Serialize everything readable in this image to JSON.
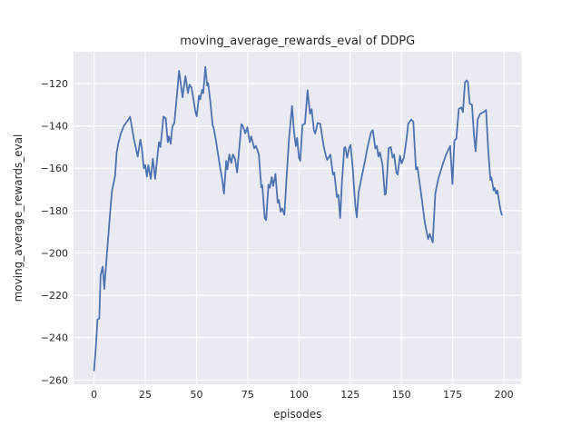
{
  "figure": {
    "title": "moving_average_rewards_eval of DDPG",
    "xlabel": "episodes",
    "ylabel": "moving_average_rewards_eval"
  },
  "chart_data": {
    "type": "line",
    "title": "moving_average_rewards_eval of DDPG",
    "xlabel": "episodes",
    "ylabel": "moving_average_rewards_eval",
    "x_ticks": [
      0,
      25,
      50,
      75,
      100,
      125,
      150,
      175,
      200
    ],
    "y_ticks": [
      -260,
      -240,
      -220,
      -200,
      -180,
      -160,
      -140,
      -120
    ],
    "xlim": [
      -10,
      208.6
    ],
    "ylim": [
      -262,
      -105
    ],
    "grid": true,
    "legend": false,
    "style": "seaborn-darkgrid",
    "line_color": "#4c72b0",
    "background_color": "#eaeaf2",
    "grid_color": "#ffffff",
    "text_color": "#262626",
    "series": [
      {
        "name": "moving_average_rewards_eval",
        "points": [
          [
            0,
            -255.5
          ],
          [
            1,
            -243
          ],
          [
            1.7,
            -231.5
          ],
          [
            2.6,
            -231
          ],
          [
            3.2,
            -210.5
          ],
          [
            4.2,
            -206.5
          ],
          [
            5,
            -217
          ],
          [
            6.5,
            -198
          ],
          [
            8,
            -179.5
          ],
          [
            8.8,
            -170.5
          ],
          [
            9.8,
            -166
          ],
          [
            10.3,
            -163.5
          ],
          [
            11,
            -153
          ],
          [
            11.8,
            -148.5
          ],
          [
            13.1,
            -143.5
          ],
          [
            14.6,
            -140
          ],
          [
            16.1,
            -138
          ],
          [
            17.6,
            -135.7
          ],
          [
            19.5,
            -146.5
          ],
          [
            20.5,
            -151
          ],
          [
            21.3,
            -154.5
          ],
          [
            22.6,
            -146.5
          ],
          [
            23.4,
            -151
          ],
          [
            24.3,
            -160
          ],
          [
            25,
            -158.5
          ],
          [
            25.8,
            -164
          ],
          [
            26.5,
            -158.5
          ],
          [
            27.7,
            -165
          ],
          [
            28.7,
            -155.5
          ],
          [
            29.8,
            -165
          ],
          [
            31,
            -153.5
          ],
          [
            31.7,
            -147.7
          ],
          [
            32.4,
            -150
          ],
          [
            33.9,
            -135.6
          ],
          [
            35,
            -136.5
          ],
          [
            36,
            -147.7
          ],
          [
            36.6,
            -145
          ],
          [
            37.4,
            -148.5
          ],
          [
            38.2,
            -140.5
          ],
          [
            39.2,
            -138.5
          ],
          [
            41.5,
            -114
          ],
          [
            43.2,
            -126.5
          ],
          [
            44.6,
            -116.5
          ],
          [
            45.8,
            -124.5
          ],
          [
            46.6,
            -120.5
          ],
          [
            47.6,
            -122
          ],
          [
            48.6,
            -128
          ],
          [
            49.5,
            -133.5
          ],
          [
            50.1,
            -135.5
          ],
          [
            51.2,
            -125.7
          ],
          [
            51.8,
            -127.5
          ],
          [
            52.7,
            -123
          ],
          [
            53.3,
            -124.5
          ],
          [
            54.3,
            -112.2
          ],
          [
            55.2,
            -121
          ],
          [
            55.7,
            -119.8
          ],
          [
            56.8,
            -129
          ],
          [
            57.9,
            -140
          ],
          [
            58.3,
            -140.5
          ],
          [
            59.5,
            -147
          ],
          [
            60.2,
            -151.5
          ],
          [
            61.6,
            -160
          ],
          [
            62.5,
            -165
          ],
          [
            63.4,
            -172
          ],
          [
            64.5,
            -156.5
          ],
          [
            65.1,
            -160.5
          ],
          [
            66,
            -153.5
          ],
          [
            67,
            -157.5
          ],
          [
            67.8,
            -153.5
          ],
          [
            68.8,
            -155.5
          ],
          [
            69.8,
            -162
          ],
          [
            71.9,
            -139.2
          ],
          [
            72.6,
            -140
          ],
          [
            73.8,
            -143.5
          ],
          [
            74.8,
            -140.6
          ],
          [
            76,
            -147.7
          ],
          [
            76.7,
            -145
          ],
          [
            78.2,
            -150.6
          ],
          [
            79,
            -149.5
          ],
          [
            80.4,
            -153.4
          ],
          [
            81.6,
            -169
          ],
          [
            82.1,
            -168
          ],
          [
            83.3,
            -183.5
          ],
          [
            84,
            -184.5
          ],
          [
            85.1,
            -167.7
          ],
          [
            85.8,
            -169.2
          ],
          [
            86.7,
            -164.2
          ],
          [
            87.4,
            -168.4
          ],
          [
            88.5,
            -162.7
          ],
          [
            89.6,
            -176.3
          ],
          [
            90.2,
            -175
          ],
          [
            91.1,
            -180.6
          ],
          [
            91.8,
            -179
          ],
          [
            92.9,
            -182
          ],
          [
            94.1,
            -162
          ],
          [
            95.1,
            -146.3
          ],
          [
            96.6,
            -130.6
          ],
          [
            97.6,
            -143
          ],
          [
            98.5,
            -149.5
          ],
          [
            99.1,
            -145.7
          ],
          [
            100,
            -155
          ],
          [
            100.6,
            -156.5
          ],
          [
            101.7,
            -139.5
          ],
          [
            102.9,
            -139
          ],
          [
            104.2,
            -123.2
          ],
          [
            105.4,
            -134.3
          ],
          [
            106.2,
            -132.1
          ],
          [
            107.3,
            -142.1
          ],
          [
            107.9,
            -143.6
          ],
          [
            109.1,
            -138.6
          ],
          [
            110.4,
            -139
          ],
          [
            112,
            -149.3
          ],
          [
            113.2,
            -154.3
          ],
          [
            113.8,
            -156
          ],
          [
            115.3,
            -153.5
          ],
          [
            116.6,
            -163
          ],
          [
            117.2,
            -162
          ],
          [
            118.5,
            -173.6
          ],
          [
            119.2,
            -172.5
          ],
          [
            120.1,
            -183.5
          ],
          [
            121,
            -166.5
          ],
          [
            122.1,
            -150.5
          ],
          [
            122.6,
            -150
          ],
          [
            123.5,
            -155
          ],
          [
            124.5,
            -150.5
          ],
          [
            125.2,
            -149
          ],
          [
            126.3,
            -160.7
          ],
          [
            127.4,
            -176.5
          ],
          [
            128.2,
            -183.2
          ],
          [
            129.1,
            -171.5
          ],
          [
            130.5,
            -164.5
          ],
          [
            132.1,
            -157
          ],
          [
            133.6,
            -149.3
          ],
          [
            135.2,
            -143
          ],
          [
            136,
            -142
          ],
          [
            137.3,
            -150.7
          ],
          [
            138,
            -149.5
          ],
          [
            138.8,
            -154.5
          ],
          [
            139.5,
            -152.5
          ],
          [
            140.8,
            -158.4
          ],
          [
            141.9,
            -172.5
          ],
          [
            142.4,
            -172
          ],
          [
            143.8,
            -150.5
          ],
          [
            144.8,
            -150
          ],
          [
            145.7,
            -155
          ],
          [
            146.4,
            -153.5
          ],
          [
            147.5,
            -162
          ],
          [
            148.2,
            -163
          ],
          [
            149.3,
            -154
          ],
          [
            150.1,
            -157.7
          ],
          [
            151.2,
            -155
          ],
          [
            152.3,
            -147.7
          ],
          [
            153.3,
            -139
          ],
          [
            154.8,
            -137
          ],
          [
            155.8,
            -138
          ],
          [
            157.1,
            -160.5
          ],
          [
            157.8,
            -159.5
          ],
          [
            158.8,
            -166.5
          ],
          [
            160,
            -175
          ],
          [
            161.4,
            -185.5
          ],
          [
            163,
            -193.5
          ],
          [
            163.8,
            -191
          ],
          [
            165.3,
            -195
          ],
          [
            166.5,
            -172
          ],
          [
            168,
            -165
          ],
          [
            170.2,
            -158
          ],
          [
            171.8,
            -153.5
          ],
          [
            173.8,
            -149.5
          ],
          [
            174.9,
            -167.5
          ],
          [
            175.8,
            -147
          ],
          [
            176.8,
            -146
          ],
          [
            178,
            -132
          ],
          [
            179.2,
            -131.3
          ],
          [
            180,
            -133.5
          ],
          [
            181,
            -119.5
          ],
          [
            181.8,
            -118.5
          ],
          [
            182.4,
            -119.3
          ],
          [
            183.3,
            -129.5
          ],
          [
            184.4,
            -130
          ],
          [
            185.4,
            -144.3
          ],
          [
            186.2,
            -152
          ],
          [
            187.2,
            -137
          ],
          [
            188.4,
            -134.3
          ],
          [
            190,
            -133.5
          ],
          [
            191.3,
            -132.5
          ],
          [
            192.4,
            -152
          ],
          [
            193.4,
            -165.5
          ],
          [
            193.9,
            -164.3
          ],
          [
            195,
            -170.5
          ],
          [
            195.5,
            -169.3
          ],
          [
            196.2,
            -172
          ],
          [
            196.8,
            -170.5
          ],
          [
            198.3,
            -179.5
          ],
          [
            199,
            -182
          ]
        ]
      }
    ]
  }
}
